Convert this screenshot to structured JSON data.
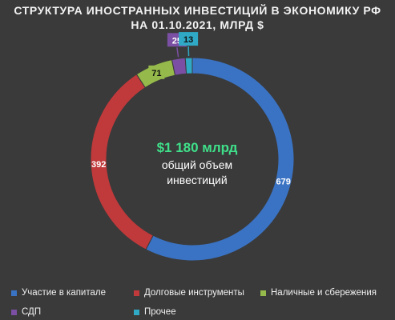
{
  "chart_data": {
    "type": "pie",
    "title_line1": "СТРУКТУРА ИНОСТРАННЫХ ИНВЕСТИЦИЙ В ЭКОНОМИКУ РФ",
    "title_line2": "НА 01.10.2021, МЛРД $",
    "center_value": "$1 180 млрд",
    "center_text_line1": "общий объем",
    "center_text_line2": "инвестиций",
    "categories": [
      "Участие в капитале",
      "Долговые инструменты",
      "Наличные и сбережения",
      "СДП",
      "Прочее"
    ],
    "values": [
      679,
      392,
      71,
      25,
      13
    ],
    "value_labels": [
      "679",
      "392",
      "71",
      "25",
      "13"
    ],
    "colors": [
      "#3a73c4",
      "#c0393b",
      "#95b94a",
      "#7b4fa3",
      "#2fa9c5"
    ],
    "center_value_color": "#3fe08a",
    "legend_position": "bottom"
  }
}
